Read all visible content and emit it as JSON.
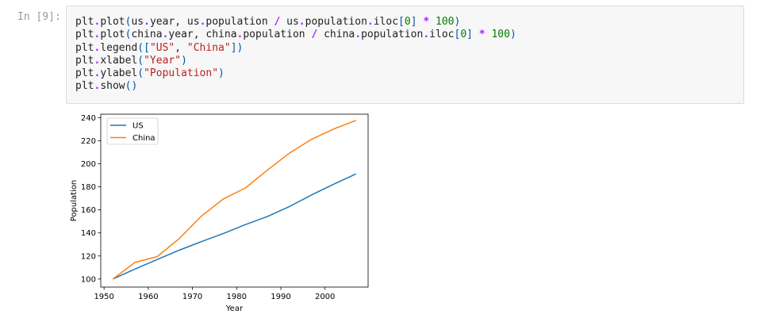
{
  "cell": {
    "prompt": "In [9]:",
    "code_lines": [
      [
        {
          "t": "plt",
          "c": ""
        },
        {
          "t": ".",
          "c": "op"
        },
        {
          "t": "plot",
          "c": ""
        },
        {
          "t": "(",
          "c": "br"
        },
        {
          "t": "us",
          "c": ""
        },
        {
          "t": ".",
          "c": "op"
        },
        {
          "t": "year, us",
          "c": ""
        },
        {
          "t": ".",
          "c": "op"
        },
        {
          "t": "population ",
          "c": ""
        },
        {
          "t": "/",
          "c": "op"
        },
        {
          "t": " us",
          "c": ""
        },
        {
          "t": ".",
          "c": "op"
        },
        {
          "t": "population",
          "c": ""
        },
        {
          "t": ".",
          "c": "op"
        },
        {
          "t": "iloc",
          "c": ""
        },
        {
          "t": "[",
          "c": "br"
        },
        {
          "t": "0",
          "c": "num"
        },
        {
          "t": "]",
          "c": "br"
        },
        {
          "t": " ",
          "c": ""
        },
        {
          "t": "*",
          "c": "op"
        },
        {
          "t": " ",
          "c": ""
        },
        {
          "t": "100",
          "c": "num"
        },
        {
          "t": ")",
          "c": "br"
        }
      ],
      [
        {
          "t": "plt",
          "c": ""
        },
        {
          "t": ".",
          "c": "op"
        },
        {
          "t": "plot",
          "c": ""
        },
        {
          "t": "(",
          "c": "br"
        },
        {
          "t": "china",
          "c": ""
        },
        {
          "t": ".",
          "c": "op"
        },
        {
          "t": "year, china",
          "c": ""
        },
        {
          "t": ".",
          "c": "op"
        },
        {
          "t": "population ",
          "c": ""
        },
        {
          "t": "/",
          "c": "op"
        },
        {
          "t": " china",
          "c": ""
        },
        {
          "t": ".",
          "c": "op"
        },
        {
          "t": "population",
          "c": ""
        },
        {
          "t": ".",
          "c": "op"
        },
        {
          "t": "iloc",
          "c": ""
        },
        {
          "t": "[",
          "c": "br"
        },
        {
          "t": "0",
          "c": "num"
        },
        {
          "t": "]",
          "c": "br"
        },
        {
          "t": " ",
          "c": ""
        },
        {
          "t": "*",
          "c": "op"
        },
        {
          "t": " ",
          "c": ""
        },
        {
          "t": "100",
          "c": "num"
        },
        {
          "t": ")",
          "c": "br"
        }
      ],
      [
        {
          "t": "plt",
          "c": ""
        },
        {
          "t": ".",
          "c": "op"
        },
        {
          "t": "legend",
          "c": ""
        },
        {
          "t": "([",
          "c": "br"
        },
        {
          "t": "\"US\"",
          "c": "str"
        },
        {
          "t": ", ",
          "c": ""
        },
        {
          "t": "\"China\"",
          "c": "str"
        },
        {
          "t": "])",
          "c": "br"
        }
      ],
      [
        {
          "t": "plt",
          "c": ""
        },
        {
          "t": ".",
          "c": "op"
        },
        {
          "t": "xlabel",
          "c": ""
        },
        {
          "t": "(",
          "c": "br"
        },
        {
          "t": "\"Year\"",
          "c": "str"
        },
        {
          "t": ")",
          "c": "br"
        }
      ],
      [
        {
          "t": "plt",
          "c": ""
        },
        {
          "t": ".",
          "c": "op"
        },
        {
          "t": "ylabel",
          "c": ""
        },
        {
          "t": "(",
          "c": "br"
        },
        {
          "t": "\"Population\"",
          "c": "str"
        },
        {
          "t": ")",
          "c": "br"
        }
      ],
      [
        {
          "t": "plt",
          "c": ""
        },
        {
          "t": ".",
          "c": "op"
        },
        {
          "t": "show",
          "c": ""
        },
        {
          "t": "()",
          "c": "br"
        }
      ]
    ]
  },
  "colors": {
    "us": "#1f77b4",
    "china": "#ff7f0e"
  },
  "chart_data": {
    "type": "line",
    "xlabel": "Year",
    "ylabel": "Population",
    "xlim": [
      1949.25,
      2009.75
    ],
    "ylim": [
      93,
      243
    ],
    "xticks": [
      1950,
      1960,
      1970,
      1980,
      1990,
      2000
    ],
    "yticks": [
      100,
      120,
      140,
      160,
      180,
      200,
      220,
      240
    ],
    "legend_position": "top-left",
    "grid": false,
    "x": [
      1952,
      1957,
      1962,
      1967,
      1972,
      1977,
      1982,
      1987,
      1992,
      1997,
      2002,
      2007
    ],
    "series": [
      {
        "name": "US",
        "color": "#1f77b4",
        "values": [
          100,
          108.6,
          116.9,
          125.0,
          132.4,
          139.5,
          147.2,
          154.3,
          163.0,
          173.0,
          182.3,
          191.2
        ]
      },
      {
        "name": "China",
        "color": "#ff7f0e",
        "values": [
          100,
          114.4,
          119.4,
          135.0,
          154.5,
          169.5,
          179.0,
          194.6,
          209.4,
          221.3,
          230.2,
          237.6
        ]
      }
    ]
  }
}
